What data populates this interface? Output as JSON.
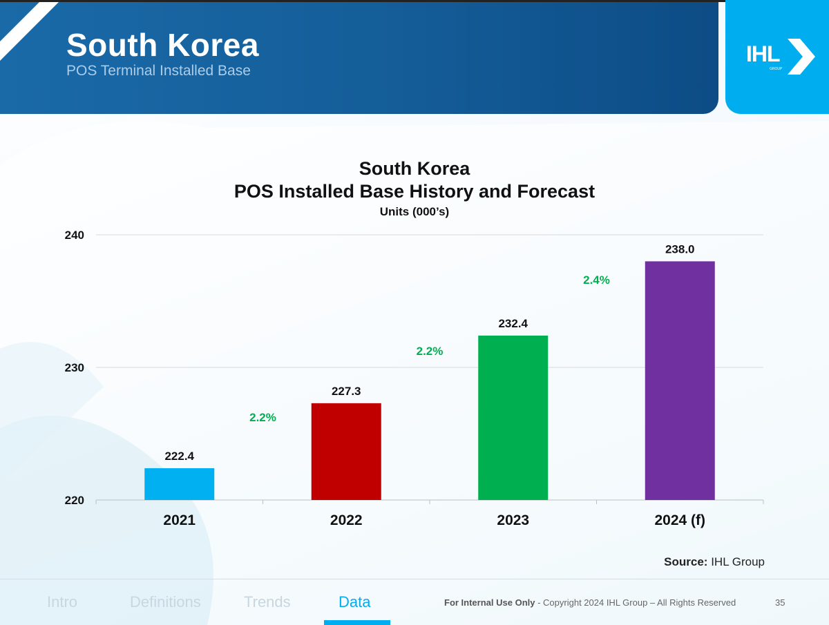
{
  "header": {
    "title": "South Korea",
    "subtitle": "POS Terminal Installed Base",
    "logo_text": "IHL",
    "logo_subtext": "GROUP"
  },
  "chart_data": {
    "type": "bar",
    "title_line1": "South Korea",
    "title_line2": "POS Installed Base History and Forecast",
    "subtitle": "Units (000’s)",
    "categories": [
      "2021",
      "2022",
      "2023",
      "2024 (f)"
    ],
    "values": [
      222.4,
      227.3,
      232.4,
      238.0
    ],
    "value_labels": [
      "222.4",
      "227.3",
      "232.4",
      "238.0"
    ],
    "bar_colors": [
      "#00b0f0",
      "#c00000",
      "#00b050",
      "#7030a0"
    ],
    "growth_labels": [
      "2.2%",
      "2.2%",
      "2.4%"
    ],
    "growth_color": "#00b050",
    "y_ticks": [
      "220",
      "230",
      "240"
    ],
    "ylim": [
      220,
      240
    ],
    "grid": true,
    "xlabel": "",
    "ylabel": ""
  },
  "source": {
    "label": "Source:",
    "value": "IHL Group"
  },
  "footer": {
    "nav": [
      "Intro",
      "Definitions",
      "Trends",
      "Data"
    ],
    "active_nav": "Data",
    "copyright_bold": "For Internal Use Only",
    "copyright_rest": " - Copyright 2024 IHL Group – All Rights Reserved",
    "page_number": "35",
    "accent_color": "#00aeef"
  }
}
